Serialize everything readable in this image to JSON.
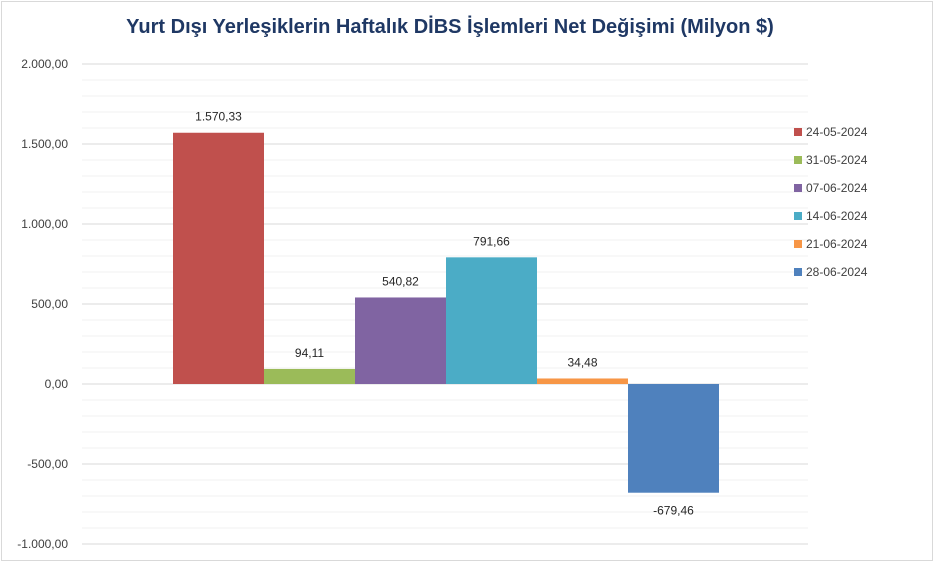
{
  "chart_data": {
    "type": "bar",
    "title": "Yurt Dışı Yerleşiklerin Haftalık DİBS İşlemleri Net Değişimi (Milyon $)",
    "ylim": [
      -1000,
      2000
    ],
    "ytick_values": [
      2000,
      1500,
      1000,
      500,
      0,
      -500,
      -1000
    ],
    "ytick_labels": [
      "2.000,00",
      "1.500,00",
      "1.000,00",
      "500,00",
      "0,00",
      "-500,00",
      "-1.000,00"
    ],
    "grid": true,
    "legend_position": "right",
    "series": [
      {
        "name": "24-05-2024",
        "value": 1570.33,
        "label": "1.570,33",
        "color": "#c0504d"
      },
      {
        "name": "31-05-2024",
        "value": 94.11,
        "label": "94,11",
        "color": "#9bbb59"
      },
      {
        "name": "07-06-2024",
        "value": 540.82,
        "label": "540,82",
        "color": "#8064a2"
      },
      {
        "name": "14-06-2024",
        "value": 791.66,
        "label": "791,66",
        "color": "#4bacc6"
      },
      {
        "name": "21-06-2024",
        "value": 34.48,
        "label": "34,48",
        "color": "#f79646"
      },
      {
        "name": "28-06-2024",
        "value": -679.46,
        "label": "-679,46",
        "color": "#4f81bd"
      }
    ]
  }
}
